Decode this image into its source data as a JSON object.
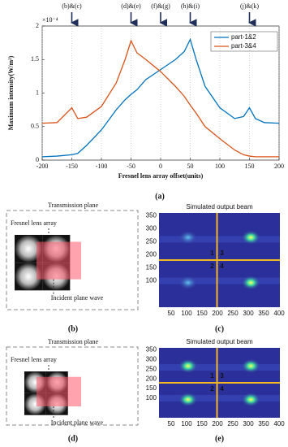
{
  "chart_data": {
    "type": "line",
    "y_multiplier": "×10⁻⁴",
    "ylabel": "Maximum intensity(W/m²)",
    "xlabel": "Fresnel lens array offset(units)",
    "caption": "(a)",
    "x": [
      -200,
      -175,
      -150,
      -140,
      -125,
      -100,
      -75,
      -60,
      -50,
      -40,
      -25,
      0,
      25,
      40,
      50,
      60,
      75,
      100,
      125,
      140,
      150,
      160,
      175,
      200
    ],
    "series": [
      {
        "name": "part-1&2",
        "color": "#0072BD",
        "values": [
          0.05,
          0.06,
          0.08,
          0.1,
          0.22,
          0.45,
          0.75,
          0.9,
          0.98,
          1.05,
          1.2,
          1.35,
          1.5,
          1.62,
          1.8,
          1.5,
          1.1,
          0.78,
          0.62,
          0.65,
          0.78,
          0.62,
          0.56,
          0.55
        ]
      },
      {
        "name": "part-3&4",
        "color": "#D95319",
        "values": [
          0.55,
          0.56,
          0.78,
          0.62,
          0.64,
          0.8,
          1.15,
          1.5,
          1.78,
          1.6,
          1.5,
          1.32,
          1.1,
          0.95,
          0.82,
          0.7,
          0.5,
          0.32,
          0.15,
          0.08,
          0.06,
          0.05,
          0.05,
          0.05
        ]
      }
    ],
    "xlim": [
      -200,
      200
    ],
    "xticks": [
      -200,
      -150,
      -100,
      -50,
      0,
      50,
      100,
      150,
      200
    ],
    "ylim": [
      0,
      2
    ],
    "yticks": [
      0,
      0.5,
      1,
      1.5,
      2
    ],
    "grid": true,
    "legend": "upper-right",
    "annotations": [
      {
        "x": -150,
        "label": "(b)&(c)"
      },
      {
        "x": -50,
        "label": "(d)&(e)"
      },
      {
        "x": 0,
        "label": "(f)&(g)"
      },
      {
        "x": 50,
        "label": "(h)&(i)"
      },
      {
        "x": 150,
        "label": "(j)&(k)"
      }
    ]
  },
  "panels": [
    {
      "caption": "(b)",
      "title": "Transmission plane",
      "lens_label": "Fresnel lens array",
      "wave_label": "Incident plane wave"
    },
    {
      "caption": "(c)",
      "title": "Simulated output beam",
      "xticks": [
        50,
        100,
        150,
        200,
        250,
        300,
        350,
        400
      ],
      "yticks": [
        100,
        150,
        200,
        250,
        300,
        350
      ],
      "quadrants": [
        "1",
        "3",
        "2",
        "4"
      ]
    },
    {
      "caption": "(d)",
      "title": "Transmission plane",
      "lens_label": "Fresnel lens array",
      "wave_label": "Incident plane wave"
    },
    {
      "caption": "(e)",
      "title": "Simulated output beam",
      "xticks": [
        50,
        100,
        150,
        200,
        250,
        300,
        350,
        400
      ],
      "yticks": [
        100,
        150,
        200,
        250,
        300,
        350
      ],
      "quadrants": [
        "1",
        "3",
        "2",
        "4"
      ]
    }
  ]
}
